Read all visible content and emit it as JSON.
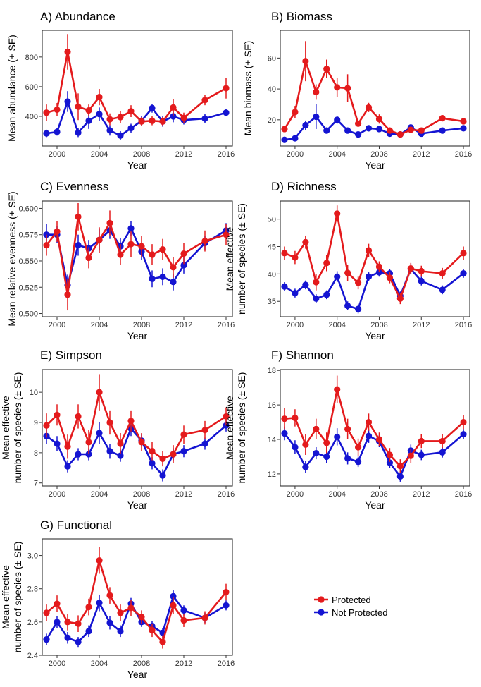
{
  "legend": {
    "entries": [
      {
        "label": "Protected",
        "color": "#E41A1C"
      },
      {
        "label": "Not Protected",
        "color": "#1414D2"
      }
    ],
    "placement": "bottom-right"
  },
  "chart_data": [
    {
      "type": "line",
      "title": "A) Abundance",
      "xlabel": "Year",
      "ylabel": [
        "Mean abundance (± SE)"
      ],
      "xlim": [
        1998.6,
        2016.6
      ],
      "ylim": [
        200,
        980
      ],
      "xticks": [
        2000,
        2004,
        2008,
        2012,
        2016
      ],
      "yticks": [
        400,
        600,
        800
      ],
      "x": [
        1999,
        2000,
        2001,
        2002,
        2003,
        2004,
        2005,
        2006,
        2007,
        2008,
        2009,
        2010,
        2011,
        2012,
        2014,
        2016
      ],
      "series": [
        {
          "name": "Protected",
          "values": [
            425,
            445,
            835,
            465,
            440,
            530,
            380,
            395,
            435,
            365,
            370,
            365,
            460,
            390,
            510,
            590
          ],
          "errors": [
            55,
            45,
            120,
            90,
            40,
            55,
            40,
            40,
            40,
            30,
            30,
            30,
            55,
            35,
            35,
            70
          ]
        },
        {
          "name": "Not Protected",
          "values": [
            285,
            295,
            500,
            290,
            370,
            415,
            305,
            270,
            320,
            370,
            455,
            365,
            400,
            375,
            385,
            425
          ],
          "errors": [
            25,
            25,
            70,
            30,
            55,
            45,
            35,
            30,
            30,
            30,
            30,
            35,
            40,
            30,
            30,
            25
          ]
        }
      ]
    },
    {
      "type": "line",
      "title": "B) Biomass",
      "xlabel": "Year",
      "ylabel": [
        "Mean biomass (± SE)"
      ],
      "xlim": [
        1998.6,
        2016.6
      ],
      "ylim": [
        3,
        78
      ],
      "xticks": [
        2000,
        2004,
        2008,
        2012,
        2016
      ],
      "yticks": [
        20,
        40,
        60
      ],
      "x": [
        1999,
        2000,
        2001,
        2002,
        2003,
        2004,
        2005,
        2006,
        2007,
        2008,
        2009,
        2010,
        2011,
        2012,
        2014,
        2016
      ],
      "series": [
        {
          "name": "Protected",
          "values": [
            14,
            25,
            58,
            38,
            53,
            41,
            40.5,
            17.5,
            28,
            20.5,
            13,
            10.5,
            13.5,
            13,
            21,
            19
          ],
          "errors": [
            2,
            4,
            13,
            5,
            6,
            6,
            9,
            2,
            3,
            3,
            2,
            1.5,
            2,
            1.5,
            1.5,
            1.5
          ]
        },
        {
          "name": "Not Protected",
          "values": [
            7,
            8,
            16.5,
            22,
            13,
            20,
            13,
            10.5,
            14.5,
            14,
            11,
            10.5,
            15,
            11,
            13,
            14.5
          ],
          "errors": [
            1,
            1,
            3,
            8,
            2,
            2.5,
            2,
            2,
            2,
            2,
            1.5,
            1.5,
            2,
            1,
            1.2,
            1.2
          ]
        }
      ]
    },
    {
      "type": "line",
      "title": "C) Evenness",
      "xlabel": "Year",
      "ylabel": [
        "Mean relative evenness (± SE)"
      ],
      "xlim": [
        1998.6,
        2016.6
      ],
      "ylim": [
        0.497,
        0.607
      ],
      "xticks": [
        2000,
        2004,
        2008,
        2012,
        2016
      ],
      "yticks": [
        0.5,
        0.525,
        0.55,
        0.575,
        0.6
      ],
      "ytick_labels": [
        "0.500",
        "0.525",
        "0.550",
        "0.575",
        "0.600"
      ],
      "x": [
        1999,
        2000,
        2001,
        2002,
        2003,
        2004,
        2005,
        2006,
        2007,
        2008,
        2009,
        2010,
        2011,
        2012,
        2014,
        2016
      ],
      "series": [
        {
          "name": "Protected",
          "values": [
            0.565,
            0.578,
            0.518,
            0.592,
            0.553,
            0.57,
            0.586,
            0.556,
            0.566,
            0.564,
            0.556,
            0.561,
            0.544,
            0.557,
            0.569,
            0.575
          ],
          "errors": [
            0.01,
            0.01,
            0.015,
            0.013,
            0.01,
            0.012,
            0.012,
            0.01,
            0.012,
            0.01,
            0.01,
            0.01,
            0.01,
            0.01,
            0.01,
            0.01
          ]
        },
        {
          "name": "Not Protected",
          "values": [
            0.575,
            0.575,
            0.527,
            0.565,
            0.562,
            0.57,
            0.579,
            0.564,
            0.581,
            0.559,
            0.533,
            0.535,
            0.53,
            0.546,
            0.567,
            0.579
          ],
          "errors": [
            0.01,
            0.008,
            0.01,
            0.01,
            0.008,
            0.01,
            0.008,
            0.008,
            0.007,
            0.008,
            0.008,
            0.008,
            0.008,
            0.008,
            0.007,
            0.007
          ]
        }
      ]
    },
    {
      "type": "line",
      "title": "D) Richness",
      "xlabel": "Year",
      "ylabel": [
        "Mean effective",
        "number of species (± SE)"
      ],
      "xlim": [
        1998.6,
        2016.6
      ],
      "ylim": [
        32.2,
        53.3
      ],
      "xticks": [
        2000,
        2004,
        2008,
        2012,
        2016
      ],
      "yticks": [
        35,
        40,
        45,
        50
      ],
      "x": [
        1999,
        2000,
        2001,
        2002,
        2003,
        2004,
        2005,
        2006,
        2007,
        2008,
        2009,
        2010,
        2011,
        2012,
        2014,
        2016
      ],
      "series": [
        {
          "name": "Protected",
          "values": [
            43.8,
            43.0,
            45.8,
            38.5,
            42.0,
            51.0,
            40.2,
            38.4,
            44.3,
            41.3,
            39.3,
            35.5,
            41.0,
            40.5,
            40.1,
            43.8
          ],
          "errors": [
            1.2,
            1.2,
            1.2,
            1.5,
            1.5,
            1.5,
            1.5,
            1.2,
            1.2,
            1.0,
            1.0,
            1.0,
            1.0,
            1.0,
            1.0,
            1.2
          ]
        },
        {
          "name": "Not Protected",
          "values": [
            37.7,
            36.5,
            38.0,
            35.5,
            36.2,
            39.5,
            34.2,
            33.6,
            39.5,
            40.3,
            40.1,
            36.0,
            40.9,
            38.7,
            37.1,
            40.1
          ],
          "errors": [
            0.8,
            0.8,
            0.8,
            0.8,
            0.8,
            1.0,
            0.8,
            0.8,
            0.8,
            0.8,
            0.8,
            0.8,
            1.0,
            0.8,
            0.8,
            0.8
          ]
        }
      ]
    },
    {
      "type": "line",
      "title": "E) Simpson",
      "xlabel": "Year",
      "ylabel": [
        "Mean effective",
        "number of species (± SE)"
      ],
      "xlim": [
        1998.6,
        2016.6
      ],
      "ylim": [
        6.9,
        10.75
      ],
      "xticks": [
        2000,
        2004,
        2008,
        2012,
        2016
      ],
      "yticks": [
        7,
        8,
        9,
        10
      ],
      "x": [
        1999,
        2000,
        2001,
        2002,
        2003,
        2004,
        2005,
        2006,
        2007,
        2008,
        2009,
        2010,
        2011,
        2012,
        2014,
        2016
      ],
      "series": [
        {
          "name": "Protected",
          "values": [
            8.9,
            9.25,
            8.2,
            9.2,
            8.35,
            10.0,
            9.0,
            8.3,
            9.05,
            8.35,
            8.05,
            7.8,
            7.95,
            8.6,
            8.75,
            9.2
          ],
          "errors": [
            0.4,
            0.35,
            0.4,
            0.4,
            0.4,
            0.6,
            0.4,
            0.35,
            0.35,
            0.3,
            0.3,
            0.25,
            0.3,
            0.3,
            0.3,
            0.3
          ]
        },
        {
          "name": "Not Protected",
          "values": [
            8.55,
            8.3,
            7.55,
            7.95,
            7.95,
            8.65,
            8.05,
            7.9,
            8.8,
            8.4,
            7.65,
            7.25,
            7.95,
            8.05,
            8.3,
            8.9
          ],
          "errors": [
            0.25,
            0.25,
            0.2,
            0.2,
            0.2,
            0.35,
            0.25,
            0.2,
            0.25,
            0.2,
            0.2,
            0.2,
            0.2,
            0.2,
            0.2,
            0.2
          ]
        }
      ]
    },
    {
      "type": "line",
      "title": "F) Shannon",
      "xlabel": "Year",
      "ylabel": [
        "Mean effective",
        "number of species (± SE)"
      ],
      "xlim": [
        1998.6,
        2016.6
      ],
      "ylim": [
        11.3,
        18.05
      ],
      "xticks": [
        2000,
        2004,
        2008,
        2012,
        2016
      ],
      "yticks": [
        12,
        14,
        16,
        18
      ],
      "x": [
        1999,
        2000,
        2001,
        2002,
        2003,
        2004,
        2005,
        2006,
        2007,
        2008,
        2009,
        2010,
        2011,
        2012,
        2014,
        2016
      ],
      "series": [
        {
          "name": "Protected",
          "values": [
            15.2,
            15.25,
            13.7,
            14.6,
            13.8,
            16.9,
            14.6,
            13.55,
            15.0,
            14.0,
            13.1,
            12.45,
            13.05,
            13.9,
            13.9,
            15.0
          ],
          "errors": [
            0.6,
            0.5,
            0.6,
            0.6,
            0.6,
            0.8,
            0.6,
            0.5,
            0.5,
            0.4,
            0.4,
            0.4,
            0.4,
            0.4,
            0.4,
            0.4
          ]
        },
        {
          "name": "Not Protected",
          "values": [
            14.35,
            13.55,
            12.4,
            13.2,
            13.0,
            14.15,
            12.9,
            12.7,
            14.2,
            13.9,
            12.65,
            11.85,
            13.35,
            13.1,
            13.25,
            14.3
          ],
          "errors": [
            0.4,
            0.4,
            0.35,
            0.35,
            0.35,
            0.5,
            0.35,
            0.3,
            0.4,
            0.35,
            0.3,
            0.3,
            0.35,
            0.3,
            0.3,
            0.3
          ]
        }
      ]
    },
    {
      "type": "line",
      "title": "G) Functional",
      "xlabel": "Year",
      "ylabel": [
        "Mean effective",
        "number of species (± SE)"
      ],
      "xlim": [
        1998.6,
        2016.6
      ],
      "ylim": [
        2.4,
        3.1
      ],
      "xticks": [
        2000,
        2004,
        2008,
        2012,
        2016
      ],
      "yticks": [
        2.4,
        2.6,
        2.8,
        3.0
      ],
      "ytick_labels": [
        "2.4",
        "2.6",
        "2.8",
        "3.0"
      ],
      "x": [
        1999,
        2000,
        2001,
        2002,
        2003,
        2004,
        2005,
        2006,
        2007,
        2008,
        2009,
        2010,
        2011,
        2012,
        2014,
        2016
      ],
      "series": [
        {
          "name": "Protected",
          "values": [
            2.655,
            2.71,
            2.6,
            2.59,
            2.69,
            2.97,
            2.76,
            2.655,
            2.685,
            2.63,
            2.55,
            2.48,
            2.7,
            2.61,
            2.625,
            2.78
          ],
          "errors": [
            0.05,
            0.05,
            0.05,
            0.05,
            0.05,
            0.08,
            0.05,
            0.05,
            0.05,
            0.04,
            0.04,
            0.04,
            0.05,
            0.04,
            0.04,
            0.05
          ]
        },
        {
          "name": "Not Protected",
          "values": [
            2.495,
            2.6,
            2.505,
            2.48,
            2.545,
            2.715,
            2.595,
            2.545,
            2.71,
            2.6,
            2.575,
            2.535,
            2.755,
            2.67,
            2.625,
            2.7
          ],
          "errors": [
            0.035,
            0.035,
            0.035,
            0.03,
            0.035,
            0.05,
            0.04,
            0.035,
            0.035,
            0.03,
            0.03,
            0.03,
            0.035,
            0.03,
            0.03,
            0.03
          ]
        }
      ]
    }
  ]
}
